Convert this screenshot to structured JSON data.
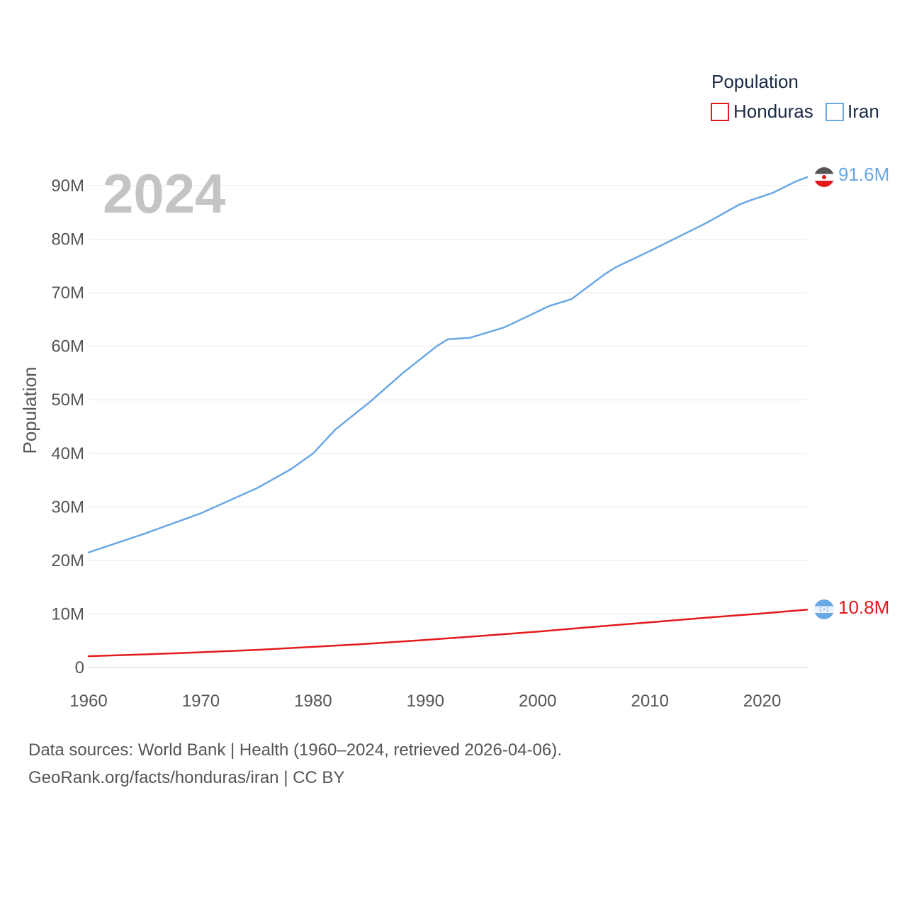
{
  "chart_data": {
    "type": "line",
    "year_overlay": "2024",
    "ylabel": "Population",
    "xlabel": "",
    "xlim": [
      1960,
      2024
    ],
    "ylim": [
      0,
      90000000
    ],
    "x_ticks": [
      1960,
      1970,
      1980,
      1990,
      2000,
      2010,
      2020
    ],
    "x_tick_labels": [
      "1960",
      "1970",
      "1980",
      "1990",
      "2000",
      "2010",
      "2020"
    ],
    "y_ticks": [
      0,
      10000000,
      20000000,
      30000000,
      40000000,
      50000000,
      60000000,
      70000000,
      80000000,
      90000000
    ],
    "y_tick_labels": [
      "0",
      "10M",
      "20M",
      "30M",
      "40M",
      "50M",
      "60M",
      "70M",
      "80M",
      "90M"
    ],
    "grid": true,
    "legend": {
      "title": "Population",
      "position": "top-right",
      "entries": [
        "Honduras",
        "Iran"
      ]
    },
    "series": [
      {
        "name": "Honduras",
        "color": "#e31a1c",
        "end_label": "10.8M",
        "x": [
          1960,
          1965,
          1970,
          1975,
          1980,
          1985,
          1990,
          1995,
          2000,
          2005,
          2010,
          2015,
          2020,
          2024
        ],
        "values": [
          2100000,
          2450000,
          2850000,
          3300000,
          3850000,
          4450000,
          5150000,
          5900000,
          6700000,
          7600000,
          8450000,
          9300000,
          10100000,
          10800000
        ]
      },
      {
        "name": "Iran",
        "color": "#6aa8e4",
        "end_label": "91.6M",
        "x": [
          1960,
          1965,
          1970,
          1975,
          1978,
          1980,
          1982,
          1985,
          1988,
          1991,
          1992,
          1994,
          1997,
          2000,
          2001,
          2003,
          2006,
          2007,
          2010,
          2015,
          2018,
          2019,
          2021,
          2023,
          2024
        ],
        "values": [
          21500000,
          25000000,
          28800000,
          33500000,
          37000000,
          40000000,
          44500000,
          49500000,
          55000000,
          60000000,
          61300000,
          61600000,
          63500000,
          66500000,
          67500000,
          68800000,
          73500000,
          74800000,
          77800000,
          83000000,
          86500000,
          87300000,
          88700000,
          90800000,
          91600000
        ]
      }
    ]
  },
  "footer": {
    "source": "Data sources: World Bank | Health (1960–2024, retrieved 2026-04-06).",
    "credit": "GeoRank.org/facts/honduras/iran | CC BY"
  }
}
